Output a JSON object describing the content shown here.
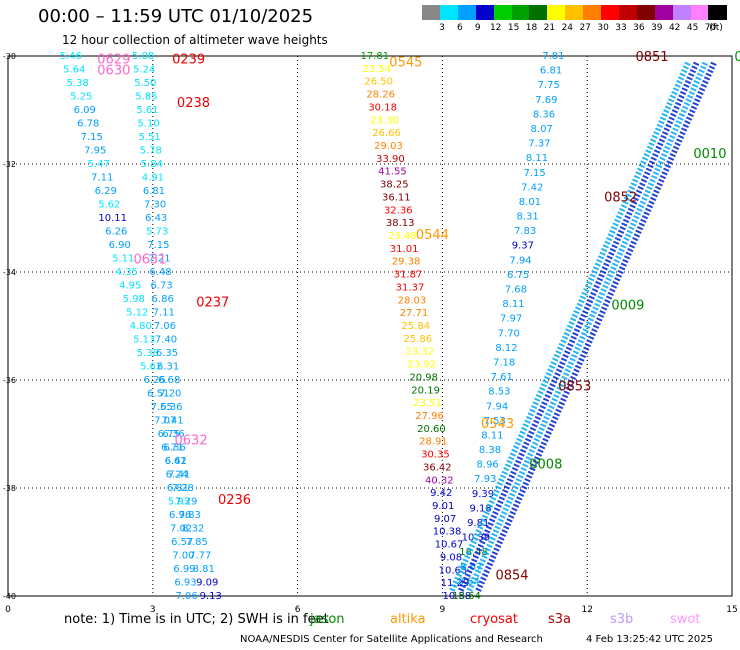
{
  "header": {
    "title": "00:00 – 11:59 UTC 01/10/2025",
    "subtitle": "12 hour collection of altimeter wave heights"
  },
  "color_scale": {
    "unit": "(ft)",
    "bins": [
      {
        "label": "3",
        "color": "#888888"
      },
      {
        "label": "6",
        "color": "#00e5ff"
      },
      {
        "label": "9",
        "color": "#00a0ff"
      },
      {
        "label": "12",
        "color": "#0000cc"
      },
      {
        "label": "15",
        "color": "#00cc00"
      },
      {
        "label": "18",
        "color": "#00a000"
      },
      {
        "label": "21",
        "color": "#007000"
      },
      {
        "label": "24",
        "color": "#ffff00"
      },
      {
        "label": "27",
        "color": "#ffc000"
      },
      {
        "label": "30",
        "color": "#ff8000"
      },
      {
        "label": "33",
        "color": "#ff0000"
      },
      {
        "label": "36",
        "color": "#c00000"
      },
      {
        "label": "39",
        "color": "#800000"
      },
      {
        "label": "42",
        "color": "#a000a0"
      },
      {
        "label": "45",
        "color": "#c080ff"
      },
      {
        "label": "70",
        "color": "#ff80ff"
      },
      {
        "label": "",
        "color": "#000000"
      }
    ]
  },
  "map": {
    "lon_ticks": [
      "0",
      "3",
      "6",
      "9",
      "12",
      "15"
    ],
    "lat_ticks": [
      "-30",
      "-32",
      "-34",
      "-36",
      "-38",
      "-40"
    ],
    "lon_values": [
      0,
      3,
      6,
      9,
      12,
      15
    ],
    "lat_values": [
      -30,
      -32,
      -34,
      -36,
      -38,
      -40
    ]
  },
  "tracks": [
    {
      "name": "jason",
      "color": "#00bbdd",
      "lon_start": 1.3,
      "lat_start": -30.0,
      "lon_end": 4.2,
      "lat_end": -40.0,
      "values": [
        "5.46",
        "5.64",
        "5.38",
        "5.25",
        "6.09",
        "6.78",
        "7.15",
        "7.95",
        "5.47",
        "7.11",
        "6.29",
        "5.62",
        "10.11",
        "6.26",
        "6.90",
        "5.11",
        "4.35",
        "4.95",
        "5.98",
        "5.12",
        "4.80",
        "5.13",
        "5.38",
        "5.62",
        "6.25",
        "6.51",
        "7.55",
        "7.07",
        "6.75",
        "6.71",
        "6.41",
        "7.41",
        "7.28",
        "7.29",
        "7.83",
        "8.32",
        "7.85",
        "7.77",
        "8.81",
        "9.09",
        "9.13"
      ]
    },
    {
      "name": "track-2",
      "color": "#00bbdd",
      "lon_start": 2.8,
      "lat_start": -30.0,
      "lon_end": 3.7,
      "lat_end": -40.0,
      "values": [
        "5.08",
        "5.24",
        "5.50",
        "5.85",
        "5.61",
        "5.10",
        "5.51",
        "5.78",
        "5.84",
        "4.91",
        "6.81",
        "7.30",
        "6.43",
        "5.73",
        "7.15",
        "7.21",
        "6.48",
        "6.73",
        "6.86",
        "7.11",
        "7.06",
        "7.40",
        "6.35",
        "6.31",
        "6.68",
        "7.20",
        "6.36",
        "7.41",
        "6.36",
        "6.36",
        "6.62",
        "6.24",
        "6.81",
        "5.93",
        "6.96",
        "7.02",
        "6.57",
        "7.00",
        "6.99",
        "6.93",
        "7.06"
      ]
    },
    {
      "name": "altika",
      "color": "#ff9900",
      "lon_start": 7.6,
      "lat_start": -30.0,
      "lon_end": 9.3,
      "lat_end": -40.0,
      "values": [
        "17.81",
        "23.54",
        "26.50",
        "28.26",
        "30.18",
        "23.30",
        "26.66",
        "29.03",
        "33.90",
        "41.55",
        "38.25",
        "36.11",
        "32.36",
        "38.13",
        "23.48",
        "31.01",
        "29.38",
        "31.87",
        "31.37",
        "28.03",
        "27.71",
        "25.84",
        "25.86",
        "23.32",
        "23.92",
        "20.98",
        "20.19",
        "23.51",
        "27.96",
        "20.60",
        "28.91",
        "30.35",
        "36.42",
        "40.32",
        "9.42",
        "9.01",
        "9.07",
        "10.38",
        "10.67",
        "9.08",
        "10.63",
        "11.29",
        "10.58"
      ]
    },
    {
      "name": "s3a-asc",
      "color": "#00aaee",
      "lon_start": 11.3,
      "lat_start": -30.0,
      "lon_end": 9.5,
      "lat_end": -40.0,
      "values": [
        "7.81",
        "6.81",
        "7.75",
        "7.69",
        "8.36",
        "8.07",
        "7.37",
        "8.11",
        "7.15",
        "7.42",
        "8.01",
        "8.31",
        "7.83",
        "9.37",
        "7.94",
        "6.75",
        "7.68",
        "8.11",
        "7.97",
        "7.70",
        "8.12",
        "7.18",
        "7.61",
        "8.53",
        "7.94",
        "7.53",
        "8.11",
        "8.38",
        "8.96",
        "7.93",
        "9.39",
        "9.18",
        "9.81",
        "10.39",
        "18.48",
        "8.67",
        "8.64",
        "18.64"
      ]
    }
  ],
  "pass_labels": [
    {
      "text": "0629",
      "color": "#ff66cc",
      "lon": 1.85,
      "lat": -30.05
    },
    {
      "text": "0630",
      "color": "#ff66cc",
      "lon": 1.85,
      "lat": -30.25
    },
    {
      "text": "0239",
      "color": "#ee0000",
      "lon": 3.4,
      "lat": -30.05
    },
    {
      "text": "0238",
      "color": "#ee0000",
      "lon": 3.5,
      "lat": -30.85
    },
    {
      "text": "0631",
      "color": "#ff66cc",
      "lon": 2.6,
      "lat": -33.75
    },
    {
      "text": "0237",
      "color": "#ee0000",
      "lon": 3.9,
      "lat": -34.55
    },
    {
      "text": "0632",
      "color": "#ff66cc",
      "lon": 3.45,
      "lat": -37.1
    },
    {
      "text": "0236",
      "color": "#ee0000",
      "lon": 4.35,
      "lat": -38.2
    },
    {
      "text": "0545",
      "color": "#ff9900",
      "lon": 7.9,
      "lat": -30.1
    },
    {
      "text": "0544",
      "color": "#ff9900",
      "lon": 8.45,
      "lat": -33.3
    },
    {
      "text": "0543",
      "color": "#ff9900",
      "lon": 9.8,
      "lat": -36.8
    },
    {
      "text": "0851",
      "color": "#800000",
      "lon": 13.0,
      "lat": -30.0
    },
    {
      "text": "0010",
      "color": "#008800",
      "lon": 14.2,
      "lat": -31.8
    },
    {
      "text": "0852",
      "color": "#800000",
      "lon": 12.35,
      "lat": -32.6
    },
    {
      "text": "0009",
      "color": "#008800",
      "lon": 12.5,
      "lat": -34.6
    },
    {
      "text": "0853",
      "color": "#800000",
      "lon": 11.4,
      "lat": -36.1
    },
    {
      "text": "0008",
      "color": "#008800",
      "lon": 10.8,
      "lat": -37.55
    },
    {
      "text": "0854",
      "color": "#800000",
      "lon": 10.1,
      "lat": -39.6
    },
    {
      "text": "0",
      "color": "#008800",
      "lon": 15.05,
      "lat": -30.0
    }
  ],
  "footer": {
    "note": "note:  1) Time is in UTC; 2) SWH is in feet",
    "legend": [
      {
        "label": "jason",
        "color": "#008800"
      },
      {
        "label": "altika",
        "color": "#ff9900"
      },
      {
        "label": "cryosat",
        "color": "#ee0000"
      },
      {
        "label": "s3a",
        "color": "#aa0000"
      },
      {
        "label": "s3b",
        "color": "#bb99ff"
      },
      {
        "label": "swot",
        "color": "#ff99ff"
      }
    ],
    "credit": "NOAA/NESDIS Center for Satellite Applications and Research",
    "timestamp": "4 Feb 13:25:42 UTC 2025"
  }
}
